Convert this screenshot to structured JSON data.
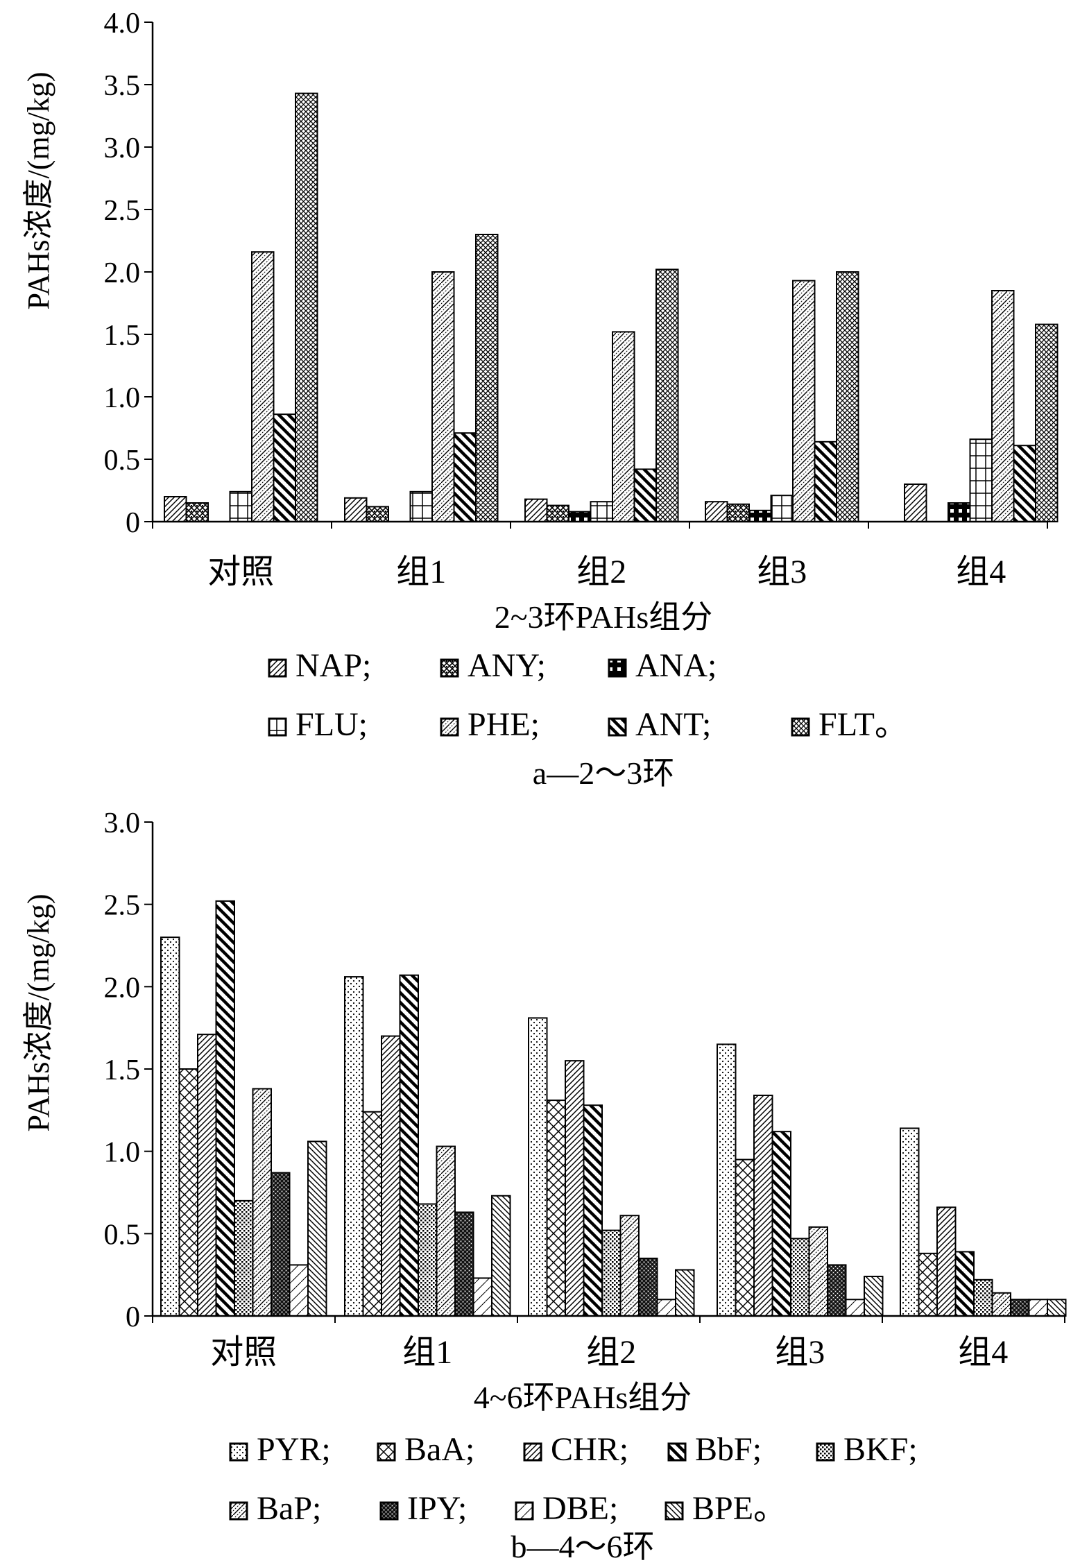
{
  "chart_data": [
    {
      "type": "bar",
      "title": "",
      "xlabel": "2~3环PAHs组分",
      "ylabel": "PAHs浓度/(mg/kg)",
      "caption": "a—2～3环",
      "ylim": [
        0,
        4.0
      ],
      "yticks": [
        "0",
        "0.5",
        "1.0",
        "1.5",
        "2.0",
        "2.5",
        "3.0",
        "3.5",
        "4.0"
      ],
      "grid": false,
      "legend_position": "bottom",
      "categories": [
        "对照",
        "组1",
        "组2",
        "组3",
        "组4"
      ],
      "series": [
        {
          "name": "NAP",
          "legend_label": "NAP;",
          "pattern": "diag-fine",
          "values": [
            0.2,
            0.19,
            0.18,
            0.16,
            0.3
          ]
        },
        {
          "name": "ANY",
          "legend_label": "ANY;",
          "pattern": "checker",
          "values": [
            0.15,
            0.12,
            0.13,
            0.14,
            0.0
          ]
        },
        {
          "name": "ANA",
          "legend_label": "ANA;",
          "pattern": "brick",
          "values": [
            0.0,
            0.0,
            0.08,
            0.09,
            0.15
          ]
        },
        {
          "name": "FLU",
          "legend_label": "FLU;",
          "pattern": "grid",
          "values": [
            0.24,
            0.24,
            0.16,
            0.21,
            0.66
          ]
        },
        {
          "name": "PHE",
          "legend_label": "PHE;",
          "pattern": "zigzag",
          "values": [
            2.16,
            2.0,
            1.52,
            1.93,
            1.85
          ]
        },
        {
          "name": "ANT",
          "legend_label": "ANT;",
          "pattern": "thick-back-diag",
          "values": [
            0.86,
            0.71,
            0.42,
            0.64,
            0.61
          ]
        },
        {
          "name": "FLT",
          "legend_label": "FLT。",
          "pattern": "cross-diag-fine",
          "values": [
            3.43,
            2.3,
            2.02,
            2.0,
            1.58
          ]
        }
      ]
    },
    {
      "type": "bar",
      "title": "",
      "xlabel": "4~6环PAHs组分",
      "ylabel": "PAHs浓度/(mg/kg)",
      "caption": "b—4～6环",
      "ylim": [
        0,
        3.0
      ],
      "yticks": [
        "0",
        "0.5",
        "1.0",
        "1.5",
        "2.0",
        "2.5",
        "3.0"
      ],
      "grid": false,
      "legend_position": "bottom",
      "categories": [
        "对照",
        "组1",
        "组2",
        "组3",
        "组4"
      ],
      "series": [
        {
          "name": "PYR",
          "legend_label": "PYR;",
          "pattern": "dots",
          "values": [
            2.3,
            2.06,
            1.81,
            1.65,
            1.14
          ]
        },
        {
          "name": "BaA",
          "legend_label": "BaA;",
          "pattern": "crosshatch",
          "values": [
            1.5,
            1.24,
            1.31,
            0.95,
            0.38
          ]
        },
        {
          "name": "CHR",
          "legend_label": "CHR;",
          "pattern": "diag-fine",
          "values": [
            1.71,
            1.7,
            1.55,
            1.34,
            0.66
          ]
        },
        {
          "name": "BbF",
          "legend_label": "BbF;",
          "pattern": "thick-back-diag",
          "values": [
            2.52,
            2.07,
            1.28,
            1.12,
            0.39
          ]
        },
        {
          "name": "BKF",
          "legend_label": "BKF;",
          "pattern": "dense-dots",
          "values": [
            0.7,
            0.68,
            0.52,
            0.47,
            0.22
          ]
        },
        {
          "name": "BaP",
          "legend_label": "BaP;",
          "pattern": "zigzag",
          "values": [
            1.38,
            1.03,
            0.61,
            0.54,
            0.14
          ]
        },
        {
          "name": "IPY",
          "legend_label": "IPY;",
          "pattern": "checker-dense",
          "values": [
            0.87,
            0.63,
            0.35,
            0.31,
            0.1
          ]
        },
        {
          "name": "DBE",
          "legend_label": "DBE;",
          "pattern": "light-diag",
          "values": [
            0.31,
            0.23,
            0.1,
            0.1,
            0.1
          ]
        },
        {
          "name": "BPE",
          "legend_label": "BPE。",
          "pattern": "back-diag-fine",
          "values": [
            1.06,
            0.73,
            0.28,
            0.24,
            0.1
          ]
        }
      ]
    }
  ]
}
